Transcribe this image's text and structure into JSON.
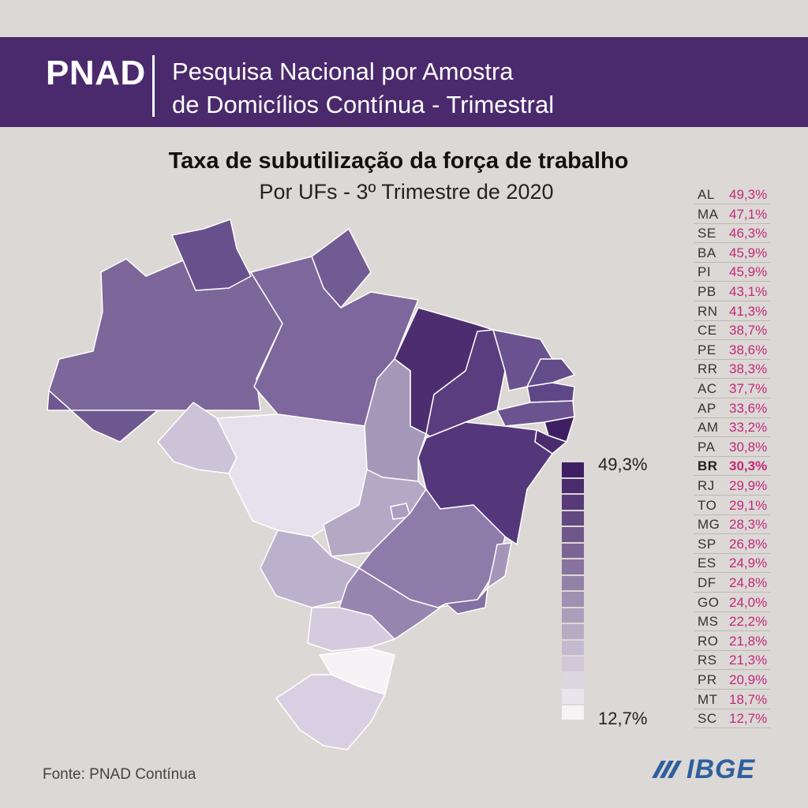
{
  "header": {
    "logo": "PNAD",
    "line1": "Pesquisa Nacional por Amostra",
    "line2": "de Domicílios Contínua - Trimestral"
  },
  "title": "Taxa de subutilização da força de trabalho",
  "subtitle": "Por UFs - 3º Trimestre de 2020",
  "legend": {
    "max": "49,3%",
    "min": "12,7%",
    "color_max": "#3f1e63",
    "color_min": "#f5f3f6"
  },
  "colors": {
    "banner": "#4a2a6c",
    "value_text": "#c2287a",
    "background": "#dcd8d5"
  },
  "ranking": [
    {
      "uf": "AL",
      "value": "49,3%"
    },
    {
      "uf": "MA",
      "value": "47,1%"
    },
    {
      "uf": "SE",
      "value": "46,3%"
    },
    {
      "uf": "BA",
      "value": "45,9%"
    },
    {
      "uf": "PI",
      "value": "45,9%"
    },
    {
      "uf": "PB",
      "value": "43,1%"
    },
    {
      "uf": "RN",
      "value": "41,3%"
    },
    {
      "uf": "CE",
      "value": "38,7%"
    },
    {
      "uf": "PE",
      "value": "38,6%"
    },
    {
      "uf": "RR",
      "value": "38,3%"
    },
    {
      "uf": "AC",
      "value": "37,7%"
    },
    {
      "uf": "AP",
      "value": "33,6%"
    },
    {
      "uf": "AM",
      "value": "33,2%"
    },
    {
      "uf": "PA",
      "value": "30,8%"
    },
    {
      "uf": "BR",
      "value": "30,3%",
      "highlight": true
    },
    {
      "uf": "RJ",
      "value": "29,9%"
    },
    {
      "uf": "TO",
      "value": "29,1%"
    },
    {
      "uf": "MG",
      "value": "28,3%"
    },
    {
      "uf": "SP",
      "value": "26,8%"
    },
    {
      "uf": "ES",
      "value": "24,9%"
    },
    {
      "uf": "DF",
      "value": "24,8%"
    },
    {
      "uf": "GO",
      "value": "24,0%"
    },
    {
      "uf": "MS",
      "value": "22,2%"
    },
    {
      "uf": "RO",
      "value": "21,8%"
    },
    {
      "uf": "RS",
      "value": "21,3%"
    },
    {
      "uf": "PR",
      "value": "20,9%"
    },
    {
      "uf": "MT",
      "value": "18,7%"
    },
    {
      "uf": "SC",
      "value": "12,7%"
    }
  ],
  "source": "Fonte:  PNAD Contínua",
  "brand": "IBGE",
  "brand_icon": "ibge-logo-icon"
}
